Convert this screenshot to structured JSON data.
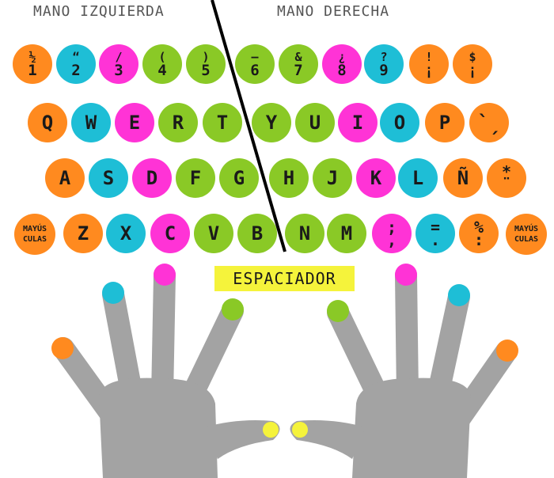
{
  "labels": {
    "left_hand": "MANO IZQUIERDA",
    "right_hand": "MANO DERECHA",
    "space": "ESPACIADOR"
  },
  "colors": {
    "orange": "#ff8a1f",
    "cyan": "#1ebed6",
    "magenta": "#ff33d6",
    "green": "#8ac926",
    "yellow": "#f5f33b",
    "gray": "#a3a3a3"
  },
  "rows": [
    [
      {
        "top": "½",
        "bottom": "1",
        "color": "orange"
      },
      {
        "top": "“",
        "bottom": "2",
        "color": "cyan"
      },
      {
        "top": "/",
        "bottom": "3",
        "color": "magenta"
      },
      {
        "top": "(",
        "bottom": "4",
        "color": "green"
      },
      {
        "top": ")",
        "bottom": "5",
        "color": "green"
      },
      {
        "top": "—",
        "bottom": "6",
        "color": "green"
      },
      {
        "top": "&",
        "bottom": "7",
        "color": "green"
      },
      {
        "top": "¿",
        "bottom": "8",
        "color": "magenta"
      },
      {
        "top": "?",
        "bottom": "9",
        "color": "cyan"
      },
      {
        "top": "!",
        "bottom": "¡",
        "color": "orange"
      },
      {
        "top": "$",
        "bottom": "¡",
        "color": "orange"
      }
    ],
    [
      {
        "label": "Q",
        "color": "orange"
      },
      {
        "label": "W",
        "color": "cyan"
      },
      {
        "label": "E",
        "color": "magenta"
      },
      {
        "label": "R",
        "color": "green"
      },
      {
        "label": "T",
        "color": "green"
      },
      {
        "label": "Y",
        "color": "green"
      },
      {
        "label": "U",
        "color": "green"
      },
      {
        "label": "I",
        "color": "magenta"
      },
      {
        "label": "O",
        "color": "cyan"
      },
      {
        "label": "P",
        "color": "orange"
      },
      {
        "label": "`ˏ",
        "color": "orange"
      }
    ],
    [
      {
        "label": "A",
        "color": "orange"
      },
      {
        "label": "S",
        "color": "cyan"
      },
      {
        "label": "D",
        "color": "magenta"
      },
      {
        "label": "F",
        "color": "green"
      },
      {
        "label": "G",
        "color": "green"
      },
      {
        "label": "H",
        "color": "green"
      },
      {
        "label": "J",
        "color": "green"
      },
      {
        "label": "K",
        "color": "magenta"
      },
      {
        "label": "L",
        "color": "cyan"
      },
      {
        "label": "Ñ",
        "color": "orange"
      },
      {
        "label": "*\n¨",
        "color": "orange"
      }
    ],
    [
      {
        "label": "MAYÚS\nCULAS",
        "color": "orange",
        "small": true
      },
      {
        "label": "Z",
        "color": "orange"
      },
      {
        "label": "X",
        "color": "cyan"
      },
      {
        "label": "C",
        "color": "magenta"
      },
      {
        "label": "V",
        "color": "green"
      },
      {
        "label": "B",
        "color": "green"
      },
      {
        "label": "N",
        "color": "green"
      },
      {
        "label": "M",
        "color": "green"
      },
      {
        "label": ";\n,",
        "color": "magenta"
      },
      {
        "label": "=\n.",
        "color": "cyan"
      },
      {
        "label": "%\n:",
        "color": "orange"
      },
      {
        "label": "MAYÚS\nCULAS",
        "color": "orange",
        "small": true
      }
    ]
  ]
}
